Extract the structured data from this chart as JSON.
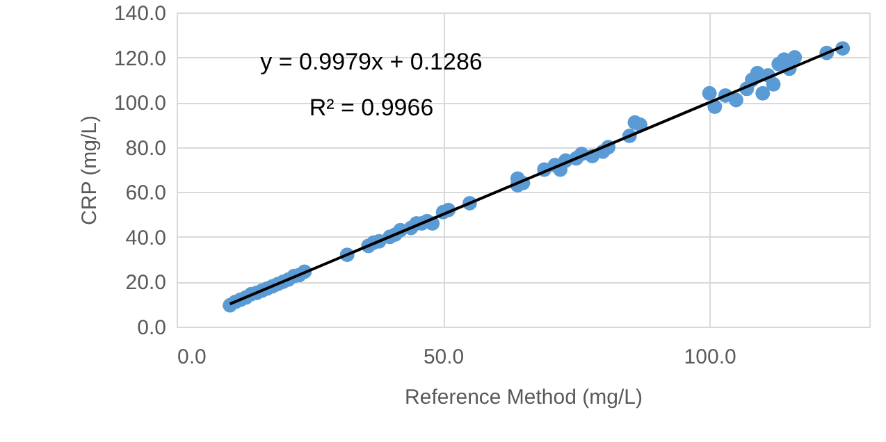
{
  "chart_data": {
    "type": "scatter",
    "xlabel": "Reference Method (mg/L)",
    "ylabel": "CRP (mg/L)",
    "annotations": [
      "y = 0.9979x + 0.1286",
      "R² = 0.9966"
    ],
    "xlim": [
      0,
      130
    ],
    "xticks": [
      {
        "value": 0,
        "label": "0.0"
      },
      {
        "value": 50,
        "label": "50.0"
      },
      {
        "value": 100,
        "label": "100.0"
      }
    ],
    "ylim": [
      0,
      140
    ],
    "yticks": [
      {
        "value": 0,
        "label": "0.0"
      },
      {
        "value": 20,
        "label": "20.0"
      },
      {
        "value": 40,
        "label": "40.0"
      },
      {
        "value": 60,
        "label": "60.0"
      },
      {
        "value": 80,
        "label": "80.0"
      },
      {
        "value": 100,
        "label": "100.0"
      },
      {
        "value": 120,
        "label": "120.0"
      },
      {
        "value": 140,
        "label": "140.0"
      }
    ],
    "grid": true,
    "marker": "circle",
    "series": [
      {
        "type": "scatter",
        "color": "#5b9bd5",
        "x": [
          10,
          11,
          12,
          13,
          14,
          15,
          16,
          17,
          18,
          19,
          20,
          21,
          22,
          23,
          24,
          32,
          36,
          37,
          38,
          40,
          41,
          42,
          44,
          45,
          46,
          47,
          48,
          50,
          51,
          55,
          64,
          64,
          65,
          69,
          71,
          72,
          73,
          75,
          76,
          78,
          80,
          81,
          85,
          86,
          87,
          100,
          101,
          103,
          105,
          107,
          108,
          109,
          110,
          111,
          112,
          113,
          114,
          115,
          116,
          122,
          125
        ],
        "values": [
          9.5,
          11,
          12,
          13,
          14.5,
          15,
          16,
          17,
          18,
          19,
          20,
          21,
          22.5,
          23,
          24.5,
          32,
          36,
          37.5,
          38,
          40,
          41,
          43,
          44,
          46,
          46,
          47,
          46,
          51,
          52,
          55,
          63,
          66,
          64,
          70,
          72,
          70,
          74,
          75,
          77,
          76,
          78,
          80,
          85,
          91,
          90,
          104,
          98,
          103,
          101,
          106,
          110,
          113,
          104,
          112,
          108,
          117,
          119,
          115,
          120,
          122,
          124
        ]
      },
      {
        "type": "line",
        "color": "#000000",
        "line_style": "solid",
        "marker": "none",
        "x": [
          10,
          125
        ],
        "values": [
          10.1,
          124.9
        ]
      }
    ]
  }
}
